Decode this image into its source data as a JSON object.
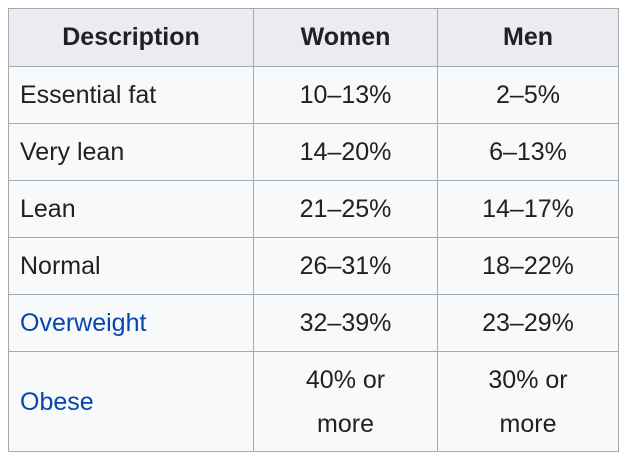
{
  "table": {
    "header": [
      "Description",
      "Women",
      "Men"
    ],
    "rows": [
      [
        "Essential fat",
        "10–13%",
        "2–5%"
      ],
      [
        "Very lean",
        "14–20%",
        "6–13%"
      ],
      [
        "Lean",
        "21–25%",
        "14–17%"
      ],
      [
        "Normal",
        "26–31%",
        "18–22%"
      ],
      [
        "Overweight",
        "32–39%",
        "23–29%"
      ],
      [
        "Obese",
        "40% or more",
        "30% or more"
      ]
    ]
  }
}
